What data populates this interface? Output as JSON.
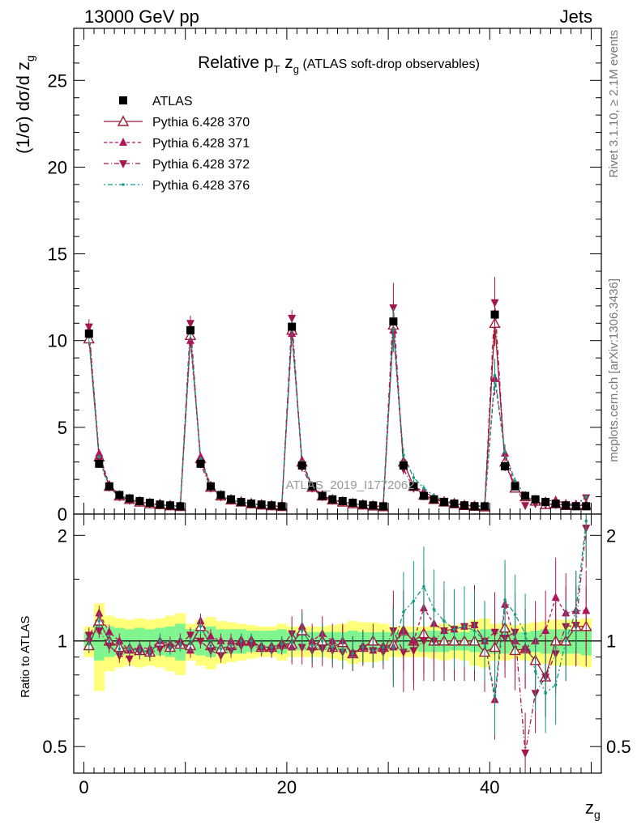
{
  "header": {
    "left": "13000 GeV pp",
    "right": "Jets"
  },
  "side_labels": {
    "rivet": "Rivet 3.1.10, ≥ 2.1M events",
    "mcplots": "mcplots.cern.ch [arXiv:1306.3436]"
  },
  "watermark": "ATLAS_2019_I1772062",
  "colors": {
    "data": "#000000",
    "p370": "#9a1b35",
    "p371": "#b0145a",
    "p372": "#a3164a",
    "p376": "#119c80",
    "band_yellow": "#ffff7a",
    "band_green": "#7ff58f"
  },
  "chart_data": [
    {
      "type": "scatter",
      "title_prefix": "Relative p",
      "title_sub1": "T",
      "title_mid": " z",
      "title_sub2": "g",
      "title_suffix": " (ATLAS soft-drop observables)",
      "ylabel": "(1/σ) dσ/d z",
      "ylabel_sub": "g",
      "xlim": [
        -1,
        51
      ],
      "ylim": [
        0,
        28
      ],
      "yticks": [
        0,
        5,
        10,
        15,
        20,
        25
      ],
      "ytick_labels": [
        "0",
        "5",
        "10",
        "15",
        "20",
        "25"
      ],
      "x": [
        0.5,
        1.5,
        2.5,
        3.5,
        4.5,
        5.5,
        6.5,
        7.5,
        8.5,
        9.5,
        10.5,
        11.5,
        12.5,
        13.5,
        14.5,
        15.5,
        16.5,
        17.5,
        18.5,
        19.5,
        20.5,
        21.5,
        22.5,
        23.5,
        24.5,
        25.5,
        26.5,
        27.5,
        28.5,
        29.5,
        30.5,
        31.5,
        32.5,
        33.5,
        34.5,
        35.5,
        36.5,
        37.5,
        38.5,
        39.5,
        40.5,
        41.5,
        42.5,
        43.5,
        44.5,
        45.5,
        46.5,
        47.5,
        48.5,
        49.5
      ],
      "legend": [
        "ATLAS",
        "Pythia 6.428 370",
        "Pythia 6.428 371",
        "Pythia 6.428 372",
        "Pythia 6.428 376"
      ],
      "series": [
        {
          "name": "ATLAS",
          "key": "data",
          "values": [
            10.4,
            2.9,
            1.6,
            1.1,
            0.9,
            0.75,
            0.65,
            0.55,
            0.5,
            0.45,
            10.6,
            2.9,
            1.6,
            1.1,
            0.85,
            0.7,
            0.6,
            0.55,
            0.5,
            0.45,
            10.8,
            2.8,
            1.6,
            1.05,
            0.85,
            0.75,
            0.65,
            0.55,
            0.5,
            0.45,
            11.1,
            2.8,
            1.6,
            1.05,
            0.85,
            0.7,
            0.6,
            0.5,
            0.45,
            0.45,
            11.5,
            2.75,
            1.6,
            1.05,
            0.85,
            0.7,
            0.6,
            0.5,
            0.45,
            0.45
          ]
        },
        {
          "name": "Pythia 6.428 370",
          "key": "p370",
          "values": [
            10.1,
            3.3,
            1.6,
            1.05,
            0.85,
            0.7,
            0.6,
            0.55,
            0.48,
            0.44,
            10.3,
            3.2,
            1.55,
            1.05,
            0.82,
            0.7,
            0.6,
            0.53,
            0.48,
            0.44,
            10.6,
            3.0,
            1.55,
            1.05,
            0.82,
            0.7,
            0.6,
            0.53,
            0.47,
            0.43,
            10.9,
            3.0,
            1.6,
            1.1,
            0.85,
            0.7,
            0.6,
            0.5,
            0.45,
            0.42,
            11.0,
            3.0,
            1.5,
            1.0,
            0.75,
            0.55,
            0.6,
            0.5,
            0.5,
            0.5
          ]
        },
        {
          "name": "Pythia 6.428 371",
          "key": "p371",
          "values": [
            10.6,
            3.5,
            1.7,
            1.1,
            0.85,
            0.72,
            0.62,
            0.55,
            0.49,
            0.45,
            10.0,
            3.3,
            1.65,
            1.1,
            0.85,
            0.7,
            0.6,
            0.53,
            0.48,
            0.44,
            10.4,
            3.1,
            1.6,
            1.1,
            0.85,
            0.7,
            0.6,
            0.53,
            0.47,
            0.43,
            10.6,
            3.0,
            1.6,
            1.3,
            0.95,
            0.75,
            0.65,
            0.55,
            0.5,
            0.45,
            7.8,
            3.5,
            1.6,
            1.0,
            0.85,
            0.75,
            0.8,
            0.6,
            0.55,
            0.55
          ]
        },
        {
          "name": "Pythia 6.428 372",
          "key": "p372",
          "values": [
            10.8,
            3.1,
            1.55,
            1.0,
            0.8,
            0.7,
            0.6,
            0.52,
            0.48,
            0.44,
            11.0,
            2.9,
            1.5,
            1.0,
            0.8,
            0.68,
            0.58,
            0.52,
            0.47,
            0.43,
            11.3,
            2.7,
            1.5,
            1.0,
            0.8,
            0.7,
            0.6,
            0.52,
            0.47,
            0.42,
            11.9,
            2.6,
            1.5,
            1.05,
            0.85,
            0.75,
            0.65,
            0.55,
            0.5,
            0.45,
            12.2,
            2.8,
            1.7,
            0.5,
            0.6,
            0.55,
            0.55,
            0.55,
            0.5,
            0.95
          ]
        },
        {
          "name": "Pythia 6.428 376",
          "key": "p376",
          "values": [
            10.2,
            3.3,
            1.6,
            1.05,
            0.85,
            0.7,
            0.6,
            0.55,
            0.48,
            0.44,
            10.4,
            3.2,
            1.55,
            1.05,
            0.82,
            0.7,
            0.6,
            0.53,
            0.48,
            0.44,
            10.7,
            3.0,
            1.55,
            1.05,
            0.82,
            0.7,
            0.6,
            0.53,
            0.47,
            0.43,
            10.6,
            3.4,
            2.1,
            1.5,
            1.05,
            0.8,
            0.65,
            0.55,
            0.48,
            0.45,
            8.0,
            3.6,
            1.9,
            1.1,
            0.7,
            0.5,
            0.45,
            0.5,
            0.55,
            1.0
          ]
        }
      ]
    },
    {
      "type": "scatter",
      "ylabel": "Ratio to ATLAS",
      "xlabel": "z",
      "xlabel_sub": "g",
      "xlim": [
        -1,
        51
      ],
      "ylim": [
        0.42,
        2.3
      ],
      "log_y": true,
      "yticks": [
        0.5,
        1,
        2
      ],
      "ytick_labels": [
        "0.5",
        "1",
        "2"
      ],
      "xticks": [
        0,
        20,
        40
      ],
      "xtick_labels": [
        "0",
        "20",
        "40"
      ],
      "x": [
        0.5,
        1.5,
        2.5,
        3.5,
        4.5,
        5.5,
        6.5,
        7.5,
        8.5,
        9.5,
        10.5,
        11.5,
        12.5,
        13.5,
        14.5,
        15.5,
        16.5,
        17.5,
        18.5,
        19.5,
        20.5,
        21.5,
        22.5,
        23.5,
        24.5,
        25.5,
        26.5,
        27.5,
        28.5,
        29.5,
        30.5,
        31.5,
        32.5,
        33.5,
        34.5,
        35.5,
        36.5,
        37.5,
        38.5,
        39.5,
        40.5,
        41.5,
        42.5,
        43.5,
        44.5,
        45.5,
        46.5,
        47.5,
        48.5,
        49.5
      ],
      "band_green": [
        0.06,
        0.12,
        0.1,
        0.09,
        0.08,
        0.09,
        0.08,
        0.09,
        0.1,
        0.12,
        0.08,
        0.09,
        0.1,
        0.08,
        0.08,
        0.08,
        0.07,
        0.07,
        0.07,
        0.08,
        0.06,
        0.06,
        0.06,
        0.06,
        0.06,
        0.06,
        0.07,
        0.06,
        0.06,
        0.06,
        0.06,
        0.06,
        0.06,
        0.07,
        0.07,
        0.07,
        0.06,
        0.06,
        0.07,
        0.08,
        0.08,
        0.08,
        0.06,
        0.06,
        0.07,
        0.08,
        0.08,
        0.08,
        0.08,
        0.09
      ],
      "band_yellow": [
        0.1,
        0.28,
        0.18,
        0.16,
        0.15,
        0.16,
        0.15,
        0.16,
        0.18,
        0.2,
        0.12,
        0.15,
        0.17,
        0.14,
        0.13,
        0.12,
        0.11,
        0.1,
        0.1,
        0.12,
        0.1,
        0.1,
        0.1,
        0.1,
        0.11,
        0.12,
        0.14,
        0.13,
        0.13,
        0.12,
        0.1,
        0.1,
        0.1,
        0.1,
        0.11,
        0.12,
        0.11,
        0.12,
        0.15,
        0.16,
        0.12,
        0.12,
        0.11,
        0.12,
        0.13,
        0.14,
        0.15,
        0.15,
        0.15,
        0.16
      ],
      "series": [
        {
          "name": "Pythia 6.428 370",
          "key": "p370",
          "values": [
            0.97,
            1.14,
            1.0,
            0.96,
            0.95,
            0.94,
            0.93,
            0.99,
            0.96,
            0.98,
            0.97,
            1.1,
            0.97,
            0.95,
            0.97,
            1.0,
            1.0,
            0.96,
            0.96,
            0.98,
            0.98,
            1.07,
            0.97,
            1.0,
            0.96,
            0.99,
            0.92,
            0.96,
            1.0,
            0.96,
            0.98,
            1.07,
            1.0,
            1.05,
            1.0,
            1.0,
            1.0,
            1.0,
            1.0,
            0.93,
            0.96,
            1.09,
            0.94,
            0.95,
            0.88,
            0.79,
            1.0,
            1.0,
            1.1,
            1.1
          ]
        },
        {
          "name": "Pythia 6.428 371",
          "key": "p371",
          "values": [
            1.02,
            1.2,
            1.06,
            1.0,
            0.94,
            0.96,
            0.95,
            1.0,
            0.98,
            1.0,
            0.94,
            1.14,
            1.03,
            1.0,
            1.0,
            1.0,
            1.0,
            0.96,
            0.96,
            0.98,
            0.96,
            1.1,
            1.0,
            1.05,
            1.0,
            1.0,
            0.92,
            0.96,
            0.94,
            0.96,
            0.96,
            1.07,
            1.0,
            1.24,
            1.12,
            1.07,
            1.08,
            1.1,
            1.11,
            1.0,
            0.68,
            1.27,
            1.0,
            0.95,
            1.0,
            1.07,
            1.33,
            1.2,
            1.22,
            1.22
          ]
        },
        {
          "name": "Pythia 6.428 372",
          "key": "p372",
          "values": [
            1.04,
            1.07,
            0.97,
            0.91,
            0.89,
            0.93,
            0.92,
            0.95,
            0.96,
            0.98,
            1.04,
            1.0,
            0.94,
            0.91,
            0.94,
            0.97,
            0.97,
            0.95,
            0.94,
            0.96,
            1.05,
            0.96,
            0.94,
            0.95,
            0.94,
            0.93,
            0.92,
            0.95,
            0.94,
            0.93,
            1.07,
            0.93,
            0.94,
            1.0,
            1.0,
            1.07,
            1.08,
            1.1,
            1.11,
            1.0,
            1.06,
            1.02,
            1.06,
            0.48,
            0.71,
            0.79,
            0.92,
            1.1,
            1.11,
            2.1
          ]
        },
        {
          "name": "Pythia 6.428 376",
          "key": "p376",
          "values": [
            0.98,
            1.14,
            1.0,
            0.95,
            0.95,
            0.94,
            0.93,
            1.0,
            0.96,
            0.98,
            0.98,
            1.1,
            0.97,
            0.95,
            0.97,
            1.0,
            1.0,
            0.96,
            0.96,
            0.98,
            0.99,
            1.07,
            0.97,
            1.0,
            0.96,
            0.94,
            0.92,
            0.96,
            0.94,
            0.96,
            0.96,
            1.21,
            1.3,
            1.43,
            1.23,
            1.14,
            1.08,
            1.1,
            1.07,
            1.0,
            0.7,
            1.31,
            1.19,
            1.05,
            0.82,
            0.71,
            0.75,
            1.0,
            1.22,
            2.2
          ]
        }
      ]
    }
  ]
}
